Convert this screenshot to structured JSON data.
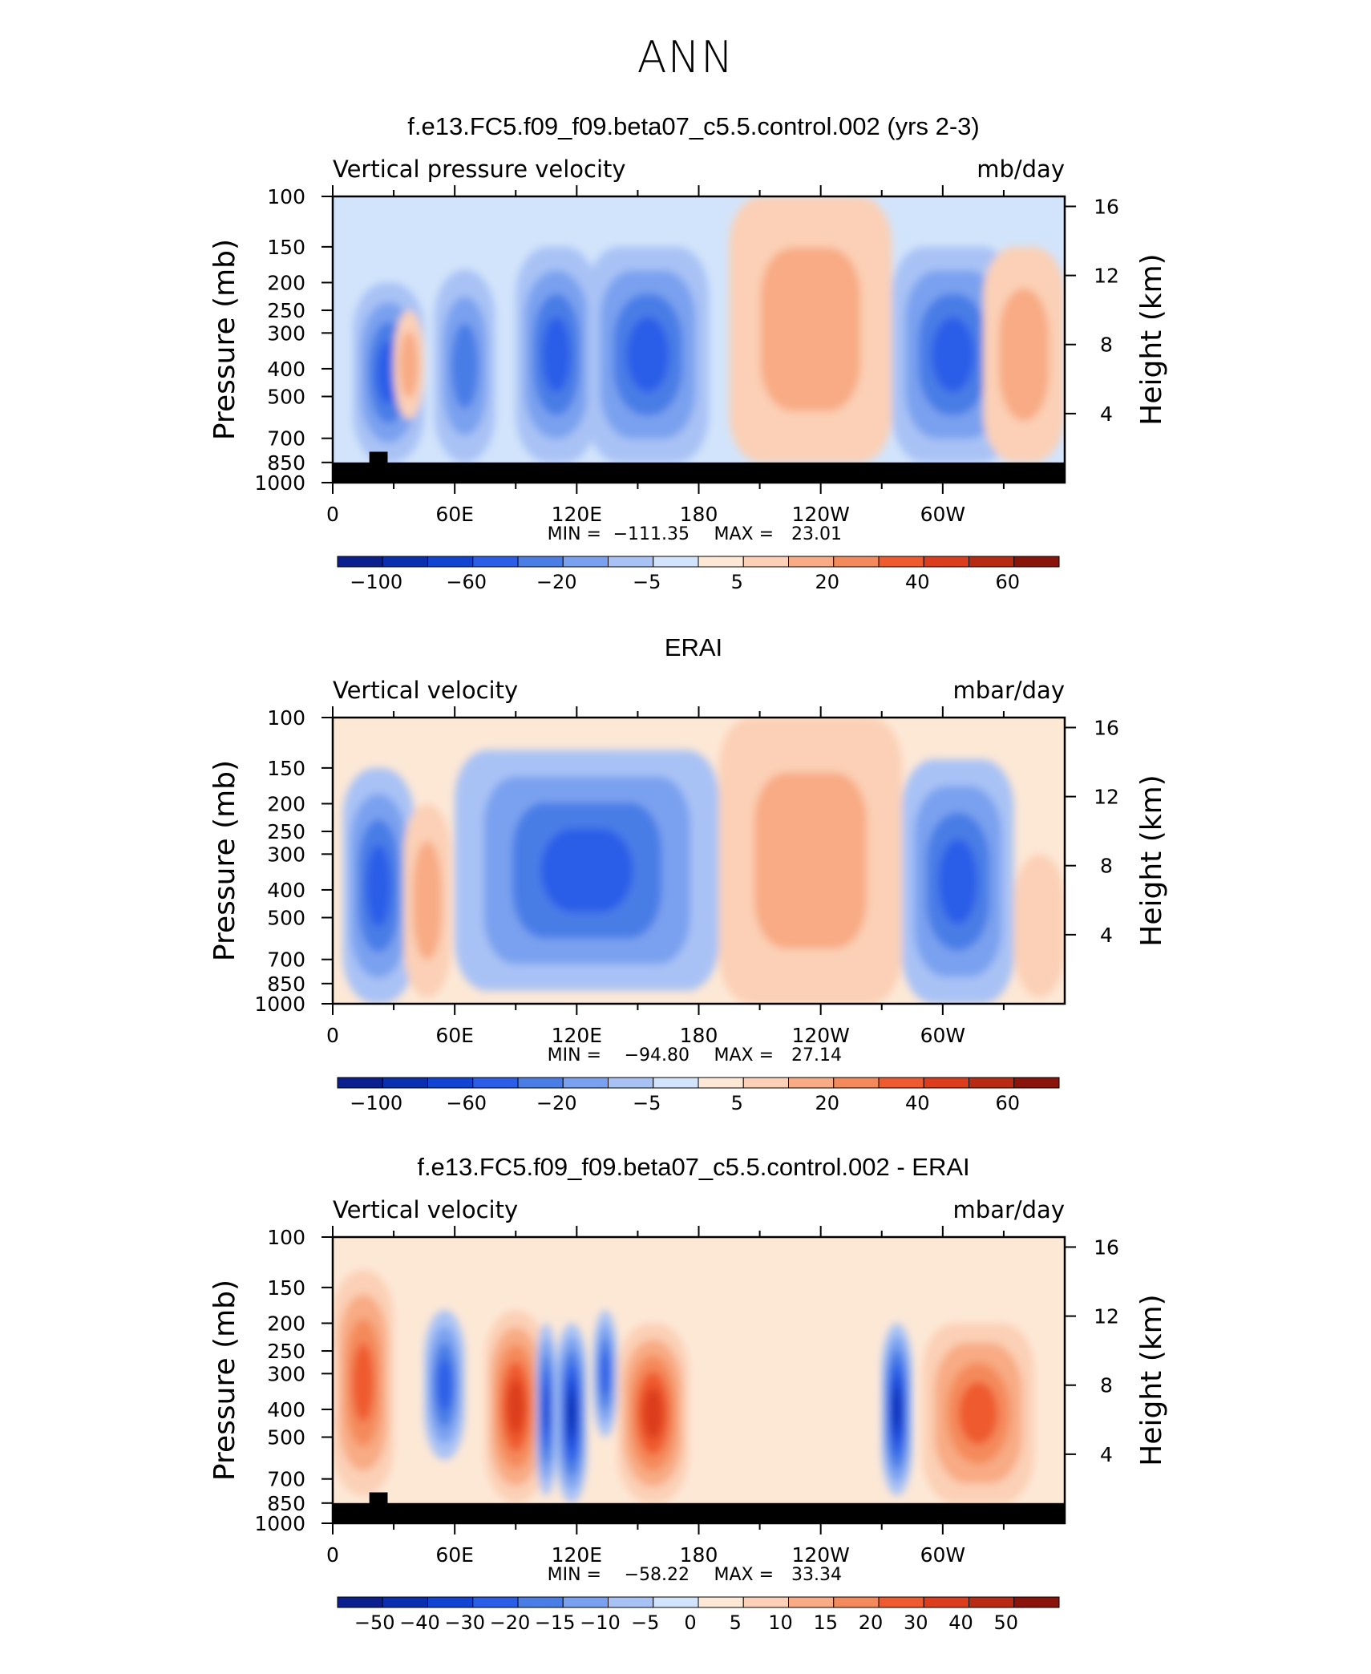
{
  "figure_title": "ANN",
  "x_tick_labels": [
    "0",
    "60E",
    "120E",
    "180",
    "120W",
    "60W"
  ],
  "y_tick_labels": [
    "100",
    "150",
    "200",
    "250",
    "300",
    "400",
    "500",
    "700",
    "850",
    "1000"
  ],
  "right_tick_labels": [
    "16",
    "12",
    "8",
    "4"
  ],
  "y_axis_label": "Pressure (mb)",
  "right_axis_label": "Height (km)",
  "panels": [
    {
      "title": "f.e13.FC5.f09_f09.beta07_c5.5.control.002 (yrs 2-3)",
      "left_label": "Vertical pressure velocity",
      "right_label": "mb/day",
      "min_label": "MIN =",
      "min_value": "−111.35",
      "max_label": "MAX =",
      "max_value": "23.01",
      "colorbar_labels": [
        "−100",
        "−60",
        "−20",
        "−5",
        "5",
        "20",
        "40",
        "60"
      ],
      "colorbar_colors": [
        "#0b1f8f",
        "#0a2fb0",
        "#1244d4",
        "#2a5de8",
        "#4a7de6",
        "#7aa1ef",
        "#a9c2f5",
        "#d2e4fb",
        "#fde8d6",
        "#fbd0b6",
        "#f8ab84",
        "#f48a5c",
        "#ef5a2f",
        "#dc3d1c",
        "#b82a12",
        "#8a140a"
      ]
    },
    {
      "title": "ERAI",
      "left_label": "Vertical velocity",
      "right_label": "mbar/day",
      "min_label": "MIN =",
      "min_value": "−94.80",
      "max_label": "MAX =",
      "max_value": "27.14",
      "colorbar_labels": [
        "−100",
        "−60",
        "−20",
        "−5",
        "5",
        "20",
        "40",
        "60"
      ],
      "colorbar_colors": [
        "#0b1f8f",
        "#0a2fb0",
        "#1244d4",
        "#2a5de8",
        "#4a7de6",
        "#7aa1ef",
        "#a9c2f5",
        "#d2e4fb",
        "#fde8d6",
        "#fbd0b6",
        "#f8ab84",
        "#f48a5c",
        "#ef5a2f",
        "#dc3d1c",
        "#b82a12",
        "#8a140a"
      ]
    },
    {
      "title": "f.e13.FC5.f09_f09.beta07_c5.5.control.002 - ERAI",
      "left_label": "Vertical velocity",
      "right_label": "mbar/day",
      "min_label": "MIN =",
      "min_value": "−58.22",
      "max_label": "MAX =",
      "max_value": "33.34",
      "colorbar_labels": [
        "−50",
        "−40",
        "−30",
        "−20",
        "−15",
        "−10",
        "−5",
        "0",
        "5",
        "10",
        "15",
        "20",
        "30",
        "40",
        "50"
      ],
      "colorbar_colors": [
        "#0b1f8f",
        "#0a2fb0",
        "#1244d4",
        "#2a5de8",
        "#4a7de6",
        "#7aa1ef",
        "#a9c2f5",
        "#d2e4fb",
        "#fde8d6",
        "#fbd0b6",
        "#f8ab84",
        "#f48a5c",
        "#ef5a2f",
        "#dc3d1c",
        "#b82a12",
        "#8a140a"
      ]
    }
  ],
  "chart_data": [
    {
      "type": "heatmap",
      "title": "f.e13.FC5.f09_f09.beta07_c5.5.control.002 (yrs 2-3)",
      "variable": "Vertical pressure velocity",
      "units": "mb/day",
      "x_ticks": [
        0,
        60,
        120,
        180,
        240,
        300
      ],
      "xlim": [
        0,
        360
      ],
      "y_ticks_mb": [
        100,
        150,
        200,
        250,
        300,
        400,
        500,
        700,
        850,
        1000
      ],
      "ylim_mb": [
        1000,
        100
      ],
      "y_scale": "log",
      "right_axis_ticks_km": [
        16,
        12,
        8,
        4
      ],
      "min": -111.35,
      "max": 23.01,
      "contour_levels": [
        -100,
        -80,
        -60,
        -40,
        -20,
        -10,
        -5,
        0,
        5,
        10,
        20,
        30,
        40,
        50,
        60
      ],
      "features": [
        {
          "lon": [
            10,
            45
          ],
          "p": [
            200,
            850
          ],
          "value": -50
        },
        {
          "lon": [
            30,
            45
          ],
          "p": [
            250,
            600
          ],
          "value": 15
        },
        {
          "lon": [
            50,
            80
          ],
          "p": [
            180,
            850
          ],
          "value": -30
        },
        {
          "lon": [
            90,
            130
          ],
          "p": [
            150,
            850
          ],
          "value": -55
        },
        {
          "lon": [
            125,
            185
          ],
          "p": [
            150,
            850
          ],
          "value": -40
        },
        {
          "lon": [
            195,
            275
          ],
          "p": [
            100,
            850
          ],
          "value": 10
        },
        {
          "lon": [
            275,
            335
          ],
          "p": [
            150,
            850
          ],
          "value": -50
        },
        {
          "lon": [
            320,
            360
          ],
          "p": [
            150,
            850
          ],
          "value": 15
        }
      ]
    },
    {
      "type": "heatmap",
      "title": "ERAI",
      "variable": "Vertical velocity",
      "units": "mbar/day",
      "x_ticks": [
        0,
        60,
        120,
        180,
        240,
        300
      ],
      "xlim": [
        0,
        360
      ],
      "y_ticks_mb": [
        100,
        150,
        200,
        250,
        300,
        400,
        500,
        700,
        850,
        1000
      ],
      "ylim_mb": [
        1000,
        100
      ],
      "y_scale": "log",
      "right_axis_ticks_km": [
        16,
        12,
        8,
        4
      ],
      "min": -94.8,
      "max": 27.14,
      "contour_levels": [
        -100,
        -80,
        -60,
        -40,
        -20,
        -10,
        -5,
        0,
        5,
        10,
        20,
        30,
        40,
        50,
        60
      ],
      "features": [
        {
          "lon": [
            5,
            40
          ],
          "p": [
            150,
            1000
          ],
          "value": -40
        },
        {
          "lon": [
            35,
            58
          ],
          "p": [
            200,
            950
          ],
          "value": 15
        },
        {
          "lon": [
            60,
            190
          ],
          "p": [
            130,
            900
          ],
          "value": -40
        },
        {
          "lon": [
            190,
            280
          ],
          "p": [
            100,
            1000
          ],
          "value": 12
        },
        {
          "lon": [
            280,
            335
          ],
          "p": [
            140,
            1000
          ],
          "value": -40
        },
        {
          "lon": [
            335,
            360
          ],
          "p": [
            300,
            950
          ],
          "value": 5
        }
      ]
    },
    {
      "type": "heatmap",
      "title": "f.e13.FC5.f09_f09.beta07_c5.5.control.002 - ERAI",
      "variable": "Vertical velocity",
      "units": "mbar/day",
      "x_ticks": [
        0,
        60,
        120,
        180,
        240,
        300
      ],
      "xlim": [
        0,
        360
      ],
      "y_ticks_mb": [
        100,
        150,
        200,
        250,
        300,
        400,
        500,
        700,
        850,
        1000
      ],
      "ylim_mb": [
        1000,
        100
      ],
      "y_scale": "log",
      "right_axis_ticks_km": [
        16,
        12,
        8,
        4
      ],
      "min": -58.22,
      "max": 33.34,
      "contour_levels": [
        -50,
        -40,
        -30,
        -20,
        -15,
        -10,
        -5,
        0,
        5,
        10,
        15,
        20,
        30,
        40,
        50
      ],
      "features": [
        {
          "lon": [
            0,
            30
          ],
          "p": [
            130,
            800
          ],
          "value": 25
        },
        {
          "lon": [
            45,
            65
          ],
          "p": [
            180,
            600
          ],
          "value": -25
        },
        {
          "lon": [
            75,
            105
          ],
          "p": [
            180,
            850
          ],
          "value": 30
        },
        {
          "lon": [
            100,
            110
          ],
          "p": [
            200,
            800
          ],
          "value": -30
        },
        {
          "lon": [
            110,
            125
          ],
          "p": [
            200,
            850
          ],
          "value": -40
        },
        {
          "lon": [
            128,
            140
          ],
          "p": [
            180,
            500
          ],
          "value": -25
        },
        {
          "lon": [
            140,
            175
          ],
          "p": [
            200,
            850
          ],
          "value": 30
        },
        {
          "lon": [
            270,
            285
          ],
          "p": [
            200,
            800
          ],
          "value": -45
        },
        {
          "lon": [
            290,
            345
          ],
          "p": [
            200,
            850
          ],
          "value": 20
        }
      ]
    }
  ]
}
